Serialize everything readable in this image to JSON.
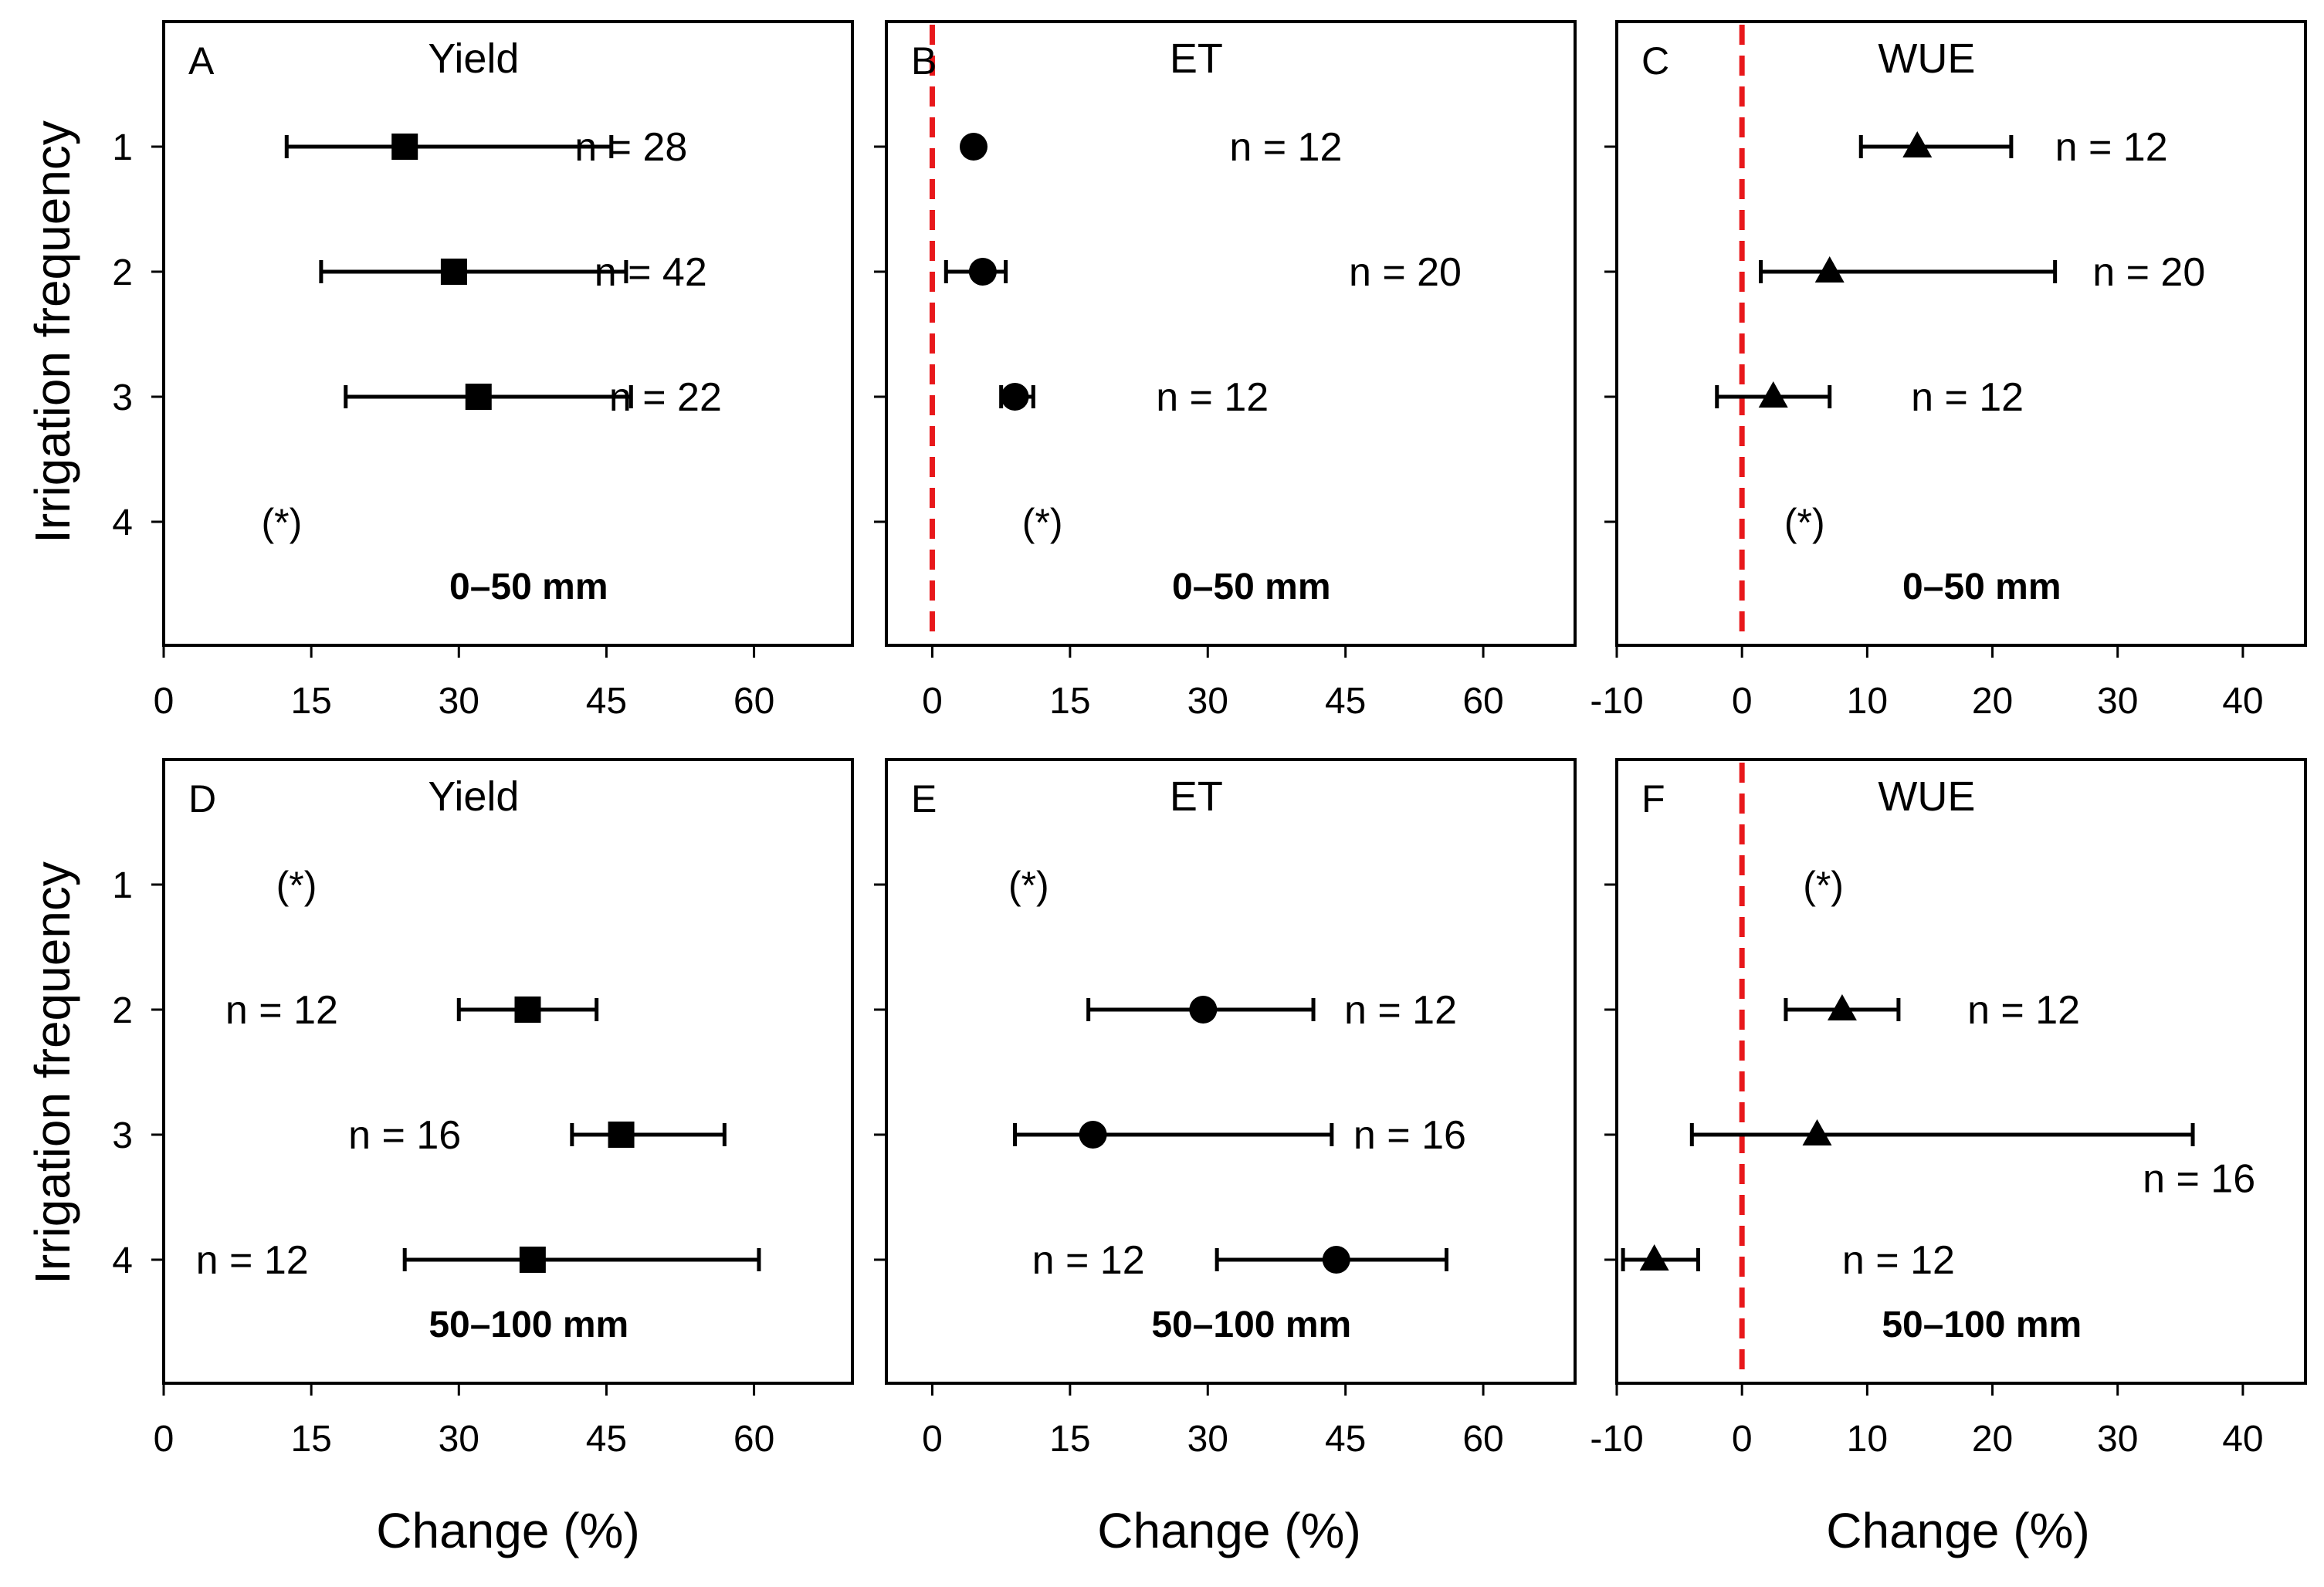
{
  "y_axis_label": "Irrigation frequency",
  "x_axis_label": "Change (%)",
  "chart_data": [
    {
      "type": "scatter",
      "panel": "A",
      "title": "Yield",
      "range_label": "0–50 mm",
      "marker": "square",
      "xlim": [
        0,
        70
      ],
      "xticks": [
        0,
        15,
        30,
        45,
        60
      ],
      "xtick_labels": [
        "0",
        "15",
        "30",
        "45",
        "60"
      ],
      "reference_line": null,
      "yticks": [
        1,
        2,
        3,
        4
      ],
      "ytick_labels": [
        "1",
        "2",
        "3",
        "4"
      ],
      "points": [
        {
          "frequency": 1,
          "mean": 24.5,
          "ci_low": 12.5,
          "ci_high": 45.5,
          "n_label": "n = 28"
        },
        {
          "frequency": 2,
          "mean": 29.5,
          "ci_low": 16,
          "ci_high": 47,
          "n_label": "n = 42"
        },
        {
          "frequency": 3,
          "mean": 32,
          "ci_low": 18.5,
          "ci_high": 47.5,
          "n_label": "n = 22"
        }
      ],
      "annotations": [
        {
          "text": "(*)",
          "frequency": 4,
          "x": 12
        }
      ],
      "n_label_positions": [
        {
          "frequency": 1,
          "x": 47.5
        },
        {
          "frequency": 2,
          "x": 49.5
        },
        {
          "frequency": 3,
          "x": 51
        }
      ]
    },
    {
      "type": "scatter",
      "panel": "B",
      "title": "ET",
      "range_label": "0–50 mm",
      "marker": "circle",
      "xlim": [
        -5,
        70
      ],
      "xticks": [
        0,
        15,
        30,
        45,
        60
      ],
      "xtick_labels": [
        "0",
        "15",
        "30",
        "45",
        "60"
      ],
      "reference_line": 0,
      "yticks": [
        1,
        2,
        3,
        4
      ],
      "ytick_labels": [
        "1",
        "2",
        "3",
        "4"
      ],
      "points": [
        {
          "frequency": 1,
          "mean": 4.5,
          "ci_low": 4.5,
          "ci_high": 4.5,
          "n_label": "n = 12"
        },
        {
          "frequency": 2,
          "mean": 5.5,
          "ci_low": 1.5,
          "ci_high": 8,
          "n_label": "n = 20"
        },
        {
          "frequency": 3,
          "mean": 9,
          "ci_low": 7.5,
          "ci_high": 11,
          "n_label": "n = 12"
        }
      ],
      "annotations": [
        {
          "text": "(*)",
          "frequency": 4,
          "x": 12
        }
      ],
      "n_label_positions": [
        {
          "frequency": 1,
          "x": 38.5
        },
        {
          "frequency": 2,
          "x": 51.5
        },
        {
          "frequency": 3,
          "x": 30.5
        }
      ]
    },
    {
      "type": "scatter",
      "panel": "C",
      "title": "WUE",
      "range_label": "0–50 mm",
      "marker": "triangle",
      "xlim": [
        -10,
        45
      ],
      "xticks": [
        -10,
        0,
        10,
        20,
        30,
        40
      ],
      "xtick_labels": [
        "-10",
        "0",
        "10",
        "20",
        "30",
        "40"
      ],
      "reference_line": 0,
      "yticks": [
        1,
        2,
        3,
        4
      ],
      "ytick_labels": [
        "1",
        "2",
        "3",
        "4"
      ],
      "points": [
        {
          "frequency": 1,
          "mean": 14,
          "ci_low": 9.5,
          "ci_high": 21.5,
          "n_label": "n = 12"
        },
        {
          "frequency": 2,
          "mean": 7,
          "ci_low": 1.5,
          "ci_high": 25,
          "n_label": "n = 20"
        },
        {
          "frequency": 3,
          "mean": 2.5,
          "ci_low": -2,
          "ci_high": 7,
          "n_label": "n = 12"
        }
      ],
      "annotations": [
        {
          "text": "(*)",
          "frequency": 4,
          "x": 5
        }
      ],
      "n_label_positions": [
        {
          "frequency": 1,
          "x": 29.5
        },
        {
          "frequency": 2,
          "x": 32.5
        },
        {
          "frequency": 3,
          "x": 18
        }
      ]
    },
    {
      "type": "scatter",
      "panel": "D",
      "title": "Yield",
      "range_label": "50–100 mm",
      "marker": "square",
      "xlim": [
        0,
        70
      ],
      "xticks": [
        0,
        15,
        30,
        45,
        60
      ],
      "xtick_labels": [
        "0",
        "15",
        "30",
        "45",
        "60"
      ],
      "reference_line": null,
      "yticks": [
        1,
        2,
        3,
        4
      ],
      "ytick_labels": [
        "1",
        "2",
        "3",
        "4"
      ],
      "points": [
        {
          "frequency": 2,
          "mean": 37,
          "ci_low": 30,
          "ci_high": 44,
          "n_label": "n = 12"
        },
        {
          "frequency": 3,
          "mean": 46.5,
          "ci_low": 41.5,
          "ci_high": 57,
          "n_label": "n = 16"
        },
        {
          "frequency": 4,
          "mean": 37.5,
          "ci_low": 24.5,
          "ci_high": 60.5,
          "n_label": "n = 12"
        }
      ],
      "annotations": [
        {
          "text": "(*)",
          "frequency": 1,
          "x": 13.5
        }
      ],
      "n_label_positions": [
        {
          "frequency": 2,
          "x": 12
        },
        {
          "frequency": 3,
          "x": 24.5
        },
        {
          "frequency": 4,
          "x": 9
        }
      ]
    },
    {
      "type": "scatter",
      "panel": "E",
      "title": "ET",
      "range_label": "50–100 mm",
      "marker": "circle",
      "xlim": [
        -5,
        70
      ],
      "xticks": [
        0,
        15,
        30,
        45,
        60
      ],
      "xtick_labels": [
        "0",
        "15",
        "30",
        "45",
        "60"
      ],
      "reference_line": null,
      "yticks": [
        1,
        2,
        3,
        4
      ],
      "ytick_labels": [
        "1",
        "2",
        "3",
        "4"
      ],
      "points": [
        {
          "frequency": 2,
          "mean": 29.5,
          "ci_low": 17,
          "ci_high": 41.5,
          "n_label": "n = 12"
        },
        {
          "frequency": 3,
          "mean": 17.5,
          "ci_low": 9,
          "ci_high": 43.5,
          "n_label": "n = 16"
        },
        {
          "frequency": 4,
          "mean": 44,
          "ci_low": 31,
          "ci_high": 56,
          "n_label": "n = 12"
        }
      ],
      "annotations": [
        {
          "text": "(*)",
          "frequency": 1,
          "x": 10.5
        }
      ],
      "n_label_positions": [
        {
          "frequency": 2,
          "x": 51
        },
        {
          "frequency": 3,
          "x": 52
        },
        {
          "frequency": 4,
          "x": 17
        }
      ]
    },
    {
      "type": "scatter",
      "panel": "F",
      "title": "WUE",
      "range_label": "50–100 mm",
      "marker": "triangle",
      "xlim": [
        -10,
        45
      ],
      "xticks": [
        -10,
        0,
        10,
        20,
        30,
        40
      ],
      "xtick_labels": [
        "-10",
        "0",
        "10",
        "20",
        "30",
        "40"
      ],
      "reference_line": 0,
      "yticks": [
        1,
        2,
        3,
        4
      ],
      "ytick_labels": [
        "1",
        "2",
        "3",
        "4"
      ],
      "points": [
        {
          "frequency": 2,
          "mean": 8,
          "ci_low": 3.5,
          "ci_high": 12.5,
          "n_label": "n = 12"
        },
        {
          "frequency": 3,
          "mean": 6,
          "ci_low": -4,
          "ci_high": 36,
          "n_label": "n = 16"
        },
        {
          "frequency": 4,
          "mean": -7,
          "ci_low": -9.5,
          "ci_high": -3.5,
          "n_label": "n = 12"
        }
      ],
      "annotations": [
        {
          "text": "(*)",
          "frequency": 1,
          "x": 6.5
        }
      ],
      "n_label_positions": [
        {
          "frequency": 2,
          "x": 22.5
        },
        {
          "frequency": 3.35,
          "x": 36.5
        },
        {
          "frequency": 4,
          "x": 12.5
        }
      ]
    }
  ]
}
